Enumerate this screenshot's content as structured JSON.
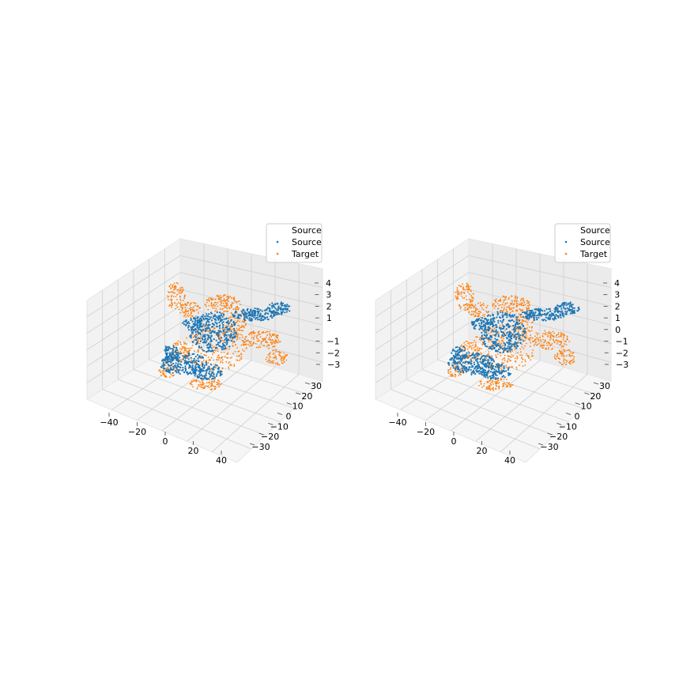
{
  "chart_data": [
    {
      "type": "scatter",
      "projection": "3d",
      "title": "",
      "grid": true,
      "legend_position": "upper right",
      "legend": [
        "Source",
        "Source",
        "Target"
      ],
      "x_ticks": [
        "−40",
        "−20",
        "0",
        "20",
        "40"
      ],
      "y_ticks": [
        "−30",
        "−20",
        "−10",
        "0",
        "10",
        "20",
        "30"
      ],
      "z_ticks": [
        "−3",
        "−2",
        "−1",
        "0",
        "1",
        "2",
        "3",
        "4"
      ],
      "z_tick_labels_shown": [
        "−3",
        "−2",
        "−1",
        "1",
        "2",
        "3",
        "4"
      ],
      "series": [
        {
          "name": "Source",
          "color": "#ffffff",
          "marker": "dot",
          "values": []
        },
        {
          "name": "Source",
          "color": "#1f77b4",
          "marker": "dot",
          "description_only": true
        },
        {
          "name": "Target",
          "color": "#ff7f0e",
          "marker": "dot",
          "description_only": true
        }
      ]
    },
    {
      "type": "scatter",
      "projection": "3d",
      "title": "",
      "grid": true,
      "legend_position": "upper right",
      "legend": [
        "Source",
        "Source",
        "Target"
      ],
      "x_ticks": [
        "−40",
        "−20",
        "0",
        "20",
        "40"
      ],
      "y_ticks": [
        "−30",
        "−20",
        "−10",
        "0",
        "10",
        "20",
        "30"
      ],
      "z_ticks": [
        "−3",
        "−2",
        "−1",
        "0",
        "1",
        "2",
        "3",
        "4"
      ],
      "z_tick_labels_shown": [
        "−3",
        "−2",
        "−1",
        "0",
        "1",
        "2",
        "3",
        "4"
      ],
      "series": [
        {
          "name": "Source",
          "color": "#ffffff",
          "marker": "dot",
          "values": []
        },
        {
          "name": "Source",
          "color": "#1f77b4",
          "marker": "dot",
          "description_only": true
        },
        {
          "name": "Target",
          "color": "#ff7f0e",
          "marker": "dot",
          "description_only": true
        }
      ]
    }
  ]
}
